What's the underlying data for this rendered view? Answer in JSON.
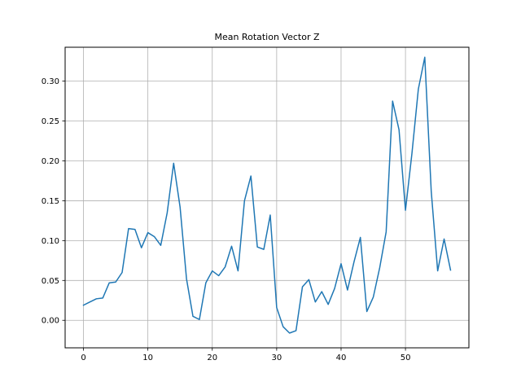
{
  "chart_data": {
    "type": "line",
    "title": "Mean Rotation Vector Z",
    "xlabel": "",
    "ylabel": "",
    "xlim": [
      -2.85,
      59.85
    ],
    "ylim": [
      -0.0345,
      0.3425
    ],
    "grid": true,
    "xticks": [
      0,
      10,
      20,
      30,
      40,
      50
    ],
    "yticks": [
      0.0,
      0.05,
      0.1,
      0.15,
      0.2,
      0.25,
      0.3
    ],
    "ytick_labels": [
      "0.00",
      "0.05",
      "0.10",
      "0.15",
      "0.20",
      "0.25",
      "0.30"
    ],
    "series": [
      {
        "color": "#1f77b4",
        "x": [
          0,
          1,
          2,
          3,
          4,
          5,
          6,
          7,
          8,
          9,
          10,
          11,
          12,
          13,
          14,
          15,
          16,
          17,
          18,
          19,
          20,
          21,
          22,
          23,
          24,
          25,
          26,
          27,
          28,
          29,
          30,
          31,
          32,
          33,
          34,
          35,
          36,
          37,
          38,
          39,
          40,
          41,
          42,
          43,
          44,
          45,
          46,
          47,
          48,
          49,
          50,
          51,
          52,
          53,
          54,
          55,
          56,
          57
        ],
        "values": [
          0.019,
          0.023,
          0.027,
          0.028,
          0.047,
          0.048,
          0.06,
          0.115,
          0.114,
          0.091,
          0.11,
          0.105,
          0.094,
          0.135,
          0.197,
          0.142,
          0.052,
          0.005,
          0.001,
          0.047,
          0.062,
          0.056,
          0.067,
          0.093,
          0.062,
          0.15,
          0.181,
          0.092,
          0.089,
          0.132,
          0.016,
          -0.008,
          -0.016,
          -0.013,
          0.042,
          0.051,
          0.023,
          0.036,
          0.02,
          0.04,
          0.071,
          0.038,
          0.073,
          0.104,
          0.011,
          0.029,
          0.066,
          0.111,
          0.275,
          0.239,
          0.138,
          0.209,
          0.29,
          0.33,
          0.162,
          0.062,
          0.102,
          0.063
        ]
      }
    ]
  }
}
